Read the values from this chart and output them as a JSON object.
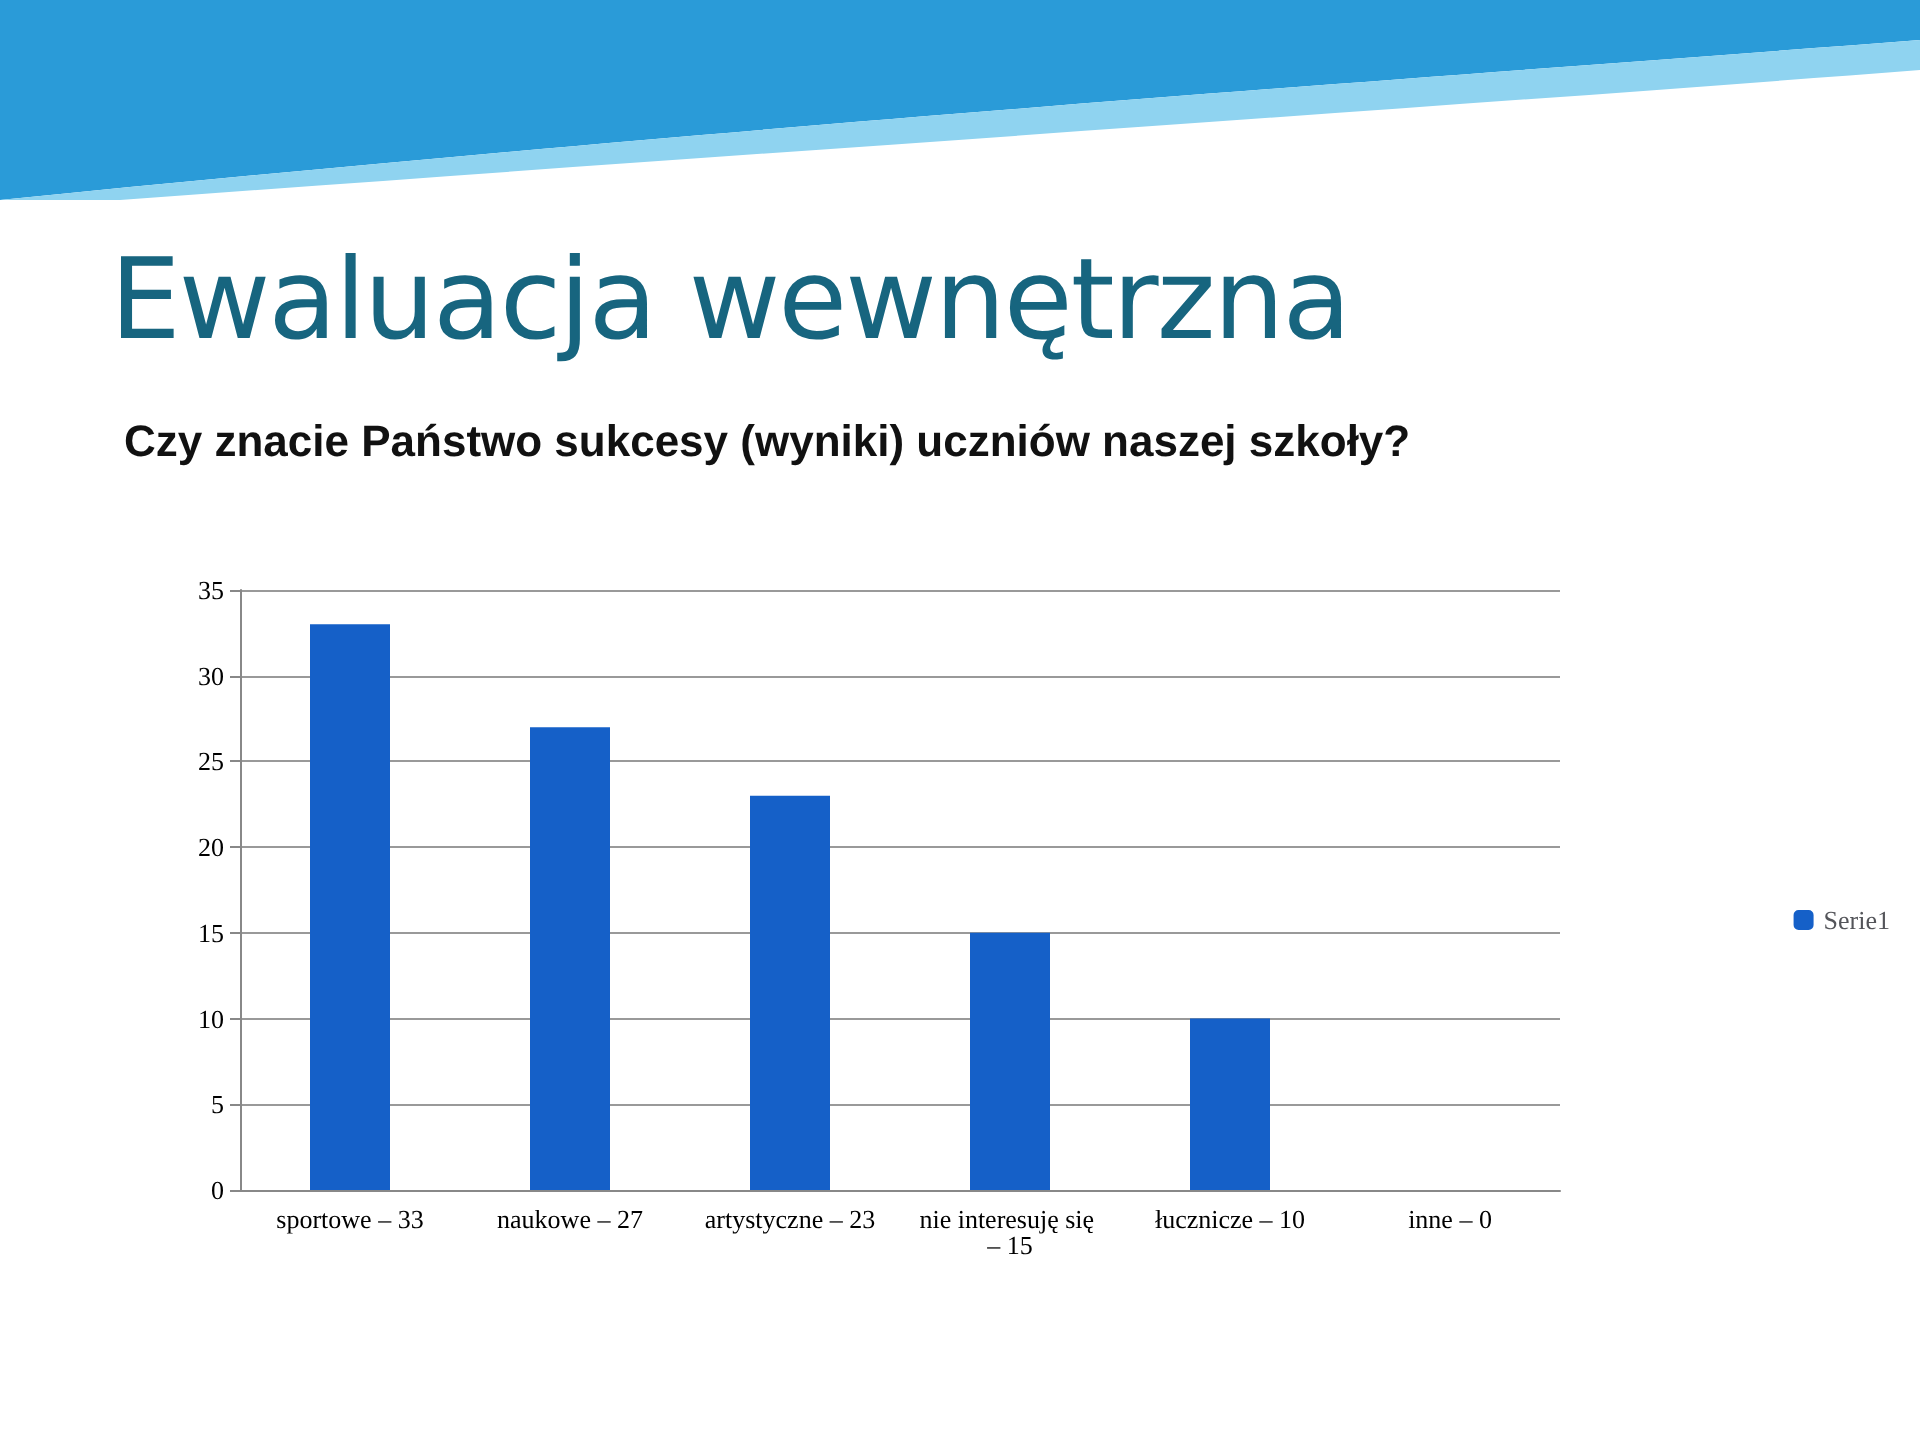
{
  "chart_data": {
    "type": "bar",
    "title": "Ewaluacja wewnętrzna",
    "subtitle": "Czy znacie Państwo sukcesy (wyniki) uczniów naszej szkoły?",
    "categories": [
      "sportowe – 33",
      "naukowe – 27",
      "artystyczne – 23",
      "nie interesuję się – 15",
      "łucznicze – 10",
      "inne – 0"
    ],
    "series": [
      {
        "name": "Serie1",
        "color": "#1560c8",
        "values": [
          33,
          27,
          23,
          15,
          10,
          0
        ]
      }
    ],
    "ylim": [
      0,
      35
    ],
    "yticks": [
      0,
      5,
      10,
      15,
      20,
      25,
      30,
      35
    ],
    "grid": "y",
    "legend": "right"
  }
}
